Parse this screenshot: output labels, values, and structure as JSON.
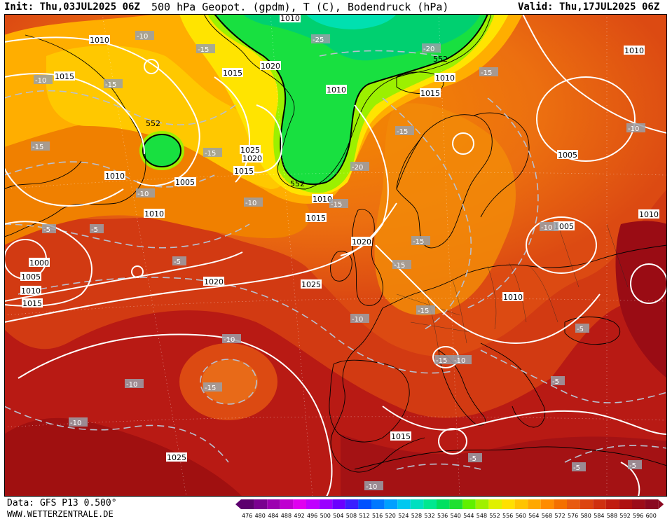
{
  "header": {
    "init": "Init: Thu,03JUL2025 06Z",
    "title": "500 hPa Geopot. (gpdm), T (C), Bodendruck (hPa)",
    "valid": "Valid: Thu,17JUL2025 06Z"
  },
  "footer": {
    "data": "Data: GFS P13 0.500°",
    "site": "WWW.WETTERZENTRALE.DE"
  },
  "legend": {
    "levels": [
      "476",
      "480",
      "484",
      "488",
      "492",
      "496",
      "500",
      "504",
      "508",
      "512",
      "516",
      "520",
      "524",
      "528",
      "532",
      "536",
      "540",
      "544",
      "548",
      "552",
      "556",
      "560",
      "564",
      "568",
      "572",
      "576",
      "580",
      "584",
      "588",
      "592",
      "596",
      "600"
    ],
    "colors": [
      "#5c006e",
      "#7a0090",
      "#9c00b0",
      "#bf00d0",
      "#e000f0",
      "#c000ff",
      "#9a00ff",
      "#6a00ff",
      "#3a20ff",
      "#0050ff",
      "#0078ff",
      "#00a0ff",
      "#00c8f0",
      "#00e0c0",
      "#00e890",
      "#00e060",
      "#20e030",
      "#60f000",
      "#a0f000",
      "#e0f000",
      "#ffe000",
      "#ffc400",
      "#ffa800",
      "#ff8c00",
      "#f47000",
      "#e85a10",
      "#dc4410",
      "#cf3010",
      "#c01c10",
      "#ae1010",
      "#9c0c18",
      "#8a0820"
    ]
  },
  "pressure_labels": [
    "1010",
    "1015",
    "1000",
    "1005",
    "1010",
    "1015",
    "1010",
    "1020",
    "1005",
    "1025",
    "1020",
    "1015",
    "1010",
    "1005",
    "1010",
    "1015",
    "1020",
    "1025",
    "1020",
    "1015",
    "1010",
    "1010",
    "1015",
    "1025",
    "1010",
    "1005",
    "1010",
    "1015",
    "1005",
    "1010",
    "1010"
  ],
  "temp_labels": [
    "-10",
    "-15",
    "-15",
    "-10",
    "-15",
    "-25",
    "-20",
    "-15",
    "-15",
    "-10",
    "-20",
    "-15",
    "-10",
    "-15",
    "-10",
    "-5",
    "-5",
    "-5",
    "-15",
    "-15",
    "-15",
    "-10",
    "-10",
    "-10",
    "-15",
    "-10",
    "-10",
    "-10",
    "-15",
    "-5",
    "-5",
    "-5",
    "-5",
    "-5",
    "-10"
  ],
  "lows": [
    "552",
    "552",
    "552"
  ]
}
